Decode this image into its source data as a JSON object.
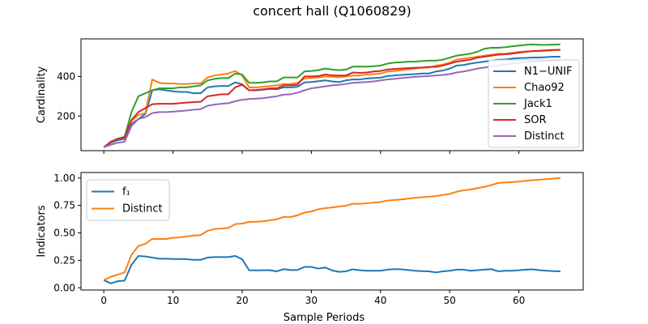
{
  "figure": {
    "title": "concert hall (Q1060829)"
  },
  "colors": {
    "blue": "#1f77b4",
    "orange": "#ff7f0e",
    "green": "#2ca02c",
    "red": "#d62728",
    "purple": "#9467bd"
  },
  "chart_data": [
    {
      "type": "line",
      "title": "",
      "xlabel": "",
      "ylabel": "Cardinality",
      "xlim": [
        -3.3,
        69.3
      ],
      "ylim": [
        25,
        590
      ],
      "xticks": [
        0,
        10,
        20,
        30,
        40,
        50,
        60
      ],
      "show_xtick_labels": false,
      "yticks": [
        200,
        400
      ],
      "legend": "right",
      "x": [
        0,
        1,
        2,
        3,
        4,
        5,
        6,
        7,
        8,
        9,
        10,
        11,
        12,
        13,
        14,
        15,
        16,
        17,
        18,
        19,
        20,
        21,
        22,
        23,
        24,
        25,
        26,
        27,
        28,
        29,
        30,
        31,
        32,
        33,
        34,
        35,
        36,
        37,
        38,
        39,
        40,
        41,
        42,
        43,
        44,
        45,
        46,
        47,
        48,
        49,
        50,
        51,
        52,
        53,
        54,
        55,
        56,
        57,
        58,
        59,
        60,
        61,
        62,
        63,
        64,
        65,
        66
      ],
      "series": [
        {
          "name": "N1−UNIF",
          "color": "#1f77b4",
          "values": [
            42,
            65,
            78,
            85,
            160,
            185,
            210,
            330,
            335,
            330,
            325,
            322,
            322,
            315,
            315,
            345,
            350,
            352,
            352,
            370,
            360,
            330,
            330,
            333,
            337,
            335,
            345,
            345,
            348,
            370,
            372,
            376,
            380,
            375,
            372,
            380,
            385,
            385,
            390,
            392,
            394,
            402,
            405,
            408,
            410,
            412,
            415,
            415,
            425,
            430,
            440,
            455,
            458,
            465,
            470,
            475,
            480,
            485,
            485,
            490,
            493,
            494,
            496,
            496,
            498,
            500,
            500
          ]
        },
        {
          "name": "Chao92",
          "color": "#ff7f0e",
          "values": [
            42,
            70,
            85,
            95,
            175,
            205,
            215,
            385,
            368,
            365,
            365,
            362,
            362,
            365,
            365,
            395,
            405,
            410,
            415,
            428,
            405,
            345,
            345,
            348,
            352,
            355,
            362,
            362,
            368,
            390,
            392,
            395,
            400,
            398,
            396,
            400,
            405,
            405,
            410,
            412,
            415,
            425,
            428,
            432,
            436,
            440,
            444,
            445,
            455,
            460,
            470,
            485,
            490,
            495,
            500,
            505,
            510,
            515,
            515,
            520,
            524,
            526,
            528,
            528,
            530,
            532,
            534
          ]
        },
        {
          "name": "Jack1",
          "color": "#2ca02c",
          "values": [
            42,
            70,
            85,
            95,
            220,
            300,
            315,
            330,
            340,
            340,
            340,
            345,
            345,
            350,
            355,
            380,
            388,
            392,
            392,
            415,
            410,
            368,
            368,
            370,
            375,
            375,
            395,
            395,
            395,
            425,
            428,
            432,
            440,
            435,
            432,
            435,
            450,
            450,
            450,
            452,
            455,
            465,
            470,
            472,
            475,
            475,
            478,
            480,
            480,
            485,
            495,
            505,
            510,
            515,
            525,
            540,
            545,
            545,
            548,
            552,
            556,
            560,
            562,
            560,
            560,
            561,
            562
          ]
        },
        {
          "name": "SOR",
          "color": "#d62728",
          "values": [
            42,
            70,
            85,
            92,
            180,
            220,
            240,
            260,
            262,
            262,
            262,
            265,
            268,
            270,
            272,
            300,
            305,
            310,
            310,
            345,
            358,
            330,
            332,
            335,
            340,
            340,
            355,
            355,
            358,
            400,
            400,
            402,
            410,
            406,
            405,
            405,
            420,
            418,
            420,
            425,
            428,
            435,
            438,
            440,
            442,
            444,
            445,
            448,
            448,
            455,
            465,
            475,
            480,
            485,
            495,
            500,
            505,
            510,
            512,
            515,
            520,
            525,
            528,
            530,
            532,
            534,
            535
          ]
        },
        {
          "name": "Distinct",
          "color": "#9467bd",
          "values": [
            42,
            55,
            65,
            70,
            150,
            185,
            195,
            215,
            220,
            220,
            222,
            225,
            228,
            232,
            235,
            252,
            258,
            262,
            265,
            275,
            282,
            286,
            288,
            290,
            295,
            300,
            308,
            310,
            318,
            330,
            340,
            345,
            350,
            355,
            358,
            362,
            368,
            370,
            372,
            375,
            380,
            385,
            388,
            392,
            395,
            398,
            400,
            402,
            405,
            408,
            412,
            420,
            425,
            432,
            440,
            445,
            450,
            455,
            460,
            465,
            470,
            472,
            474,
            476,
            478,
            480,
            482
          ]
        }
      ]
    },
    {
      "type": "line",
      "title": "",
      "xlabel": "Sample Periods",
      "ylabel": "Indicators",
      "xlim": [
        -3.3,
        69.3
      ],
      "ylim": [
        -0.02,
        1.05
      ],
      "xticks": [
        0,
        10,
        20,
        30,
        40,
        50,
        60
      ],
      "yticks": [
        0.0,
        0.25,
        0.5,
        0.75,
        1.0
      ],
      "ytick_labels": [
        "0.00",
        "0.25",
        "0.50",
        "0.75",
        "1.00"
      ],
      "legend": "top-left",
      "x": [
        0,
        1,
        2,
        3,
        4,
        5,
        6,
        7,
        8,
        9,
        10,
        11,
        12,
        13,
        14,
        15,
        16,
        17,
        18,
        19,
        20,
        21,
        22,
        23,
        24,
        25,
        26,
        27,
        28,
        29,
        30,
        31,
        32,
        33,
        34,
        35,
        36,
        37,
        38,
        39,
        40,
        41,
        42,
        43,
        44,
        45,
        46,
        47,
        48,
        49,
        50,
        51,
        52,
        53,
        54,
        55,
        56,
        57,
        58,
        59,
        60,
        61,
        62,
        63,
        64,
        65,
        66
      ],
      "series": [
        {
          "name": "f₁",
          "color": "#1f77b4",
          "values": [
            0.07,
            0.04,
            0.06,
            0.065,
            0.21,
            0.29,
            0.285,
            0.275,
            0.265,
            0.265,
            0.262,
            0.262,
            0.26,
            0.255,
            0.255,
            0.275,
            0.28,
            0.28,
            0.28,
            0.29,
            0.26,
            0.16,
            0.158,
            0.16,
            0.16,
            0.15,
            0.17,
            0.162,
            0.162,
            0.19,
            0.19,
            0.175,
            0.185,
            0.158,
            0.145,
            0.15,
            0.168,
            0.16,
            0.155,
            0.155,
            0.155,
            0.165,
            0.17,
            0.168,
            0.162,
            0.155,
            0.152,
            0.15,
            0.14,
            0.15,
            0.155,
            0.165,
            0.165,
            0.155,
            0.16,
            0.165,
            0.17,
            0.15,
            0.155,
            0.155,
            0.16,
            0.165,
            0.168,
            0.16,
            0.155,
            0.152,
            0.15
          ]
        },
        {
          "name": "Distinct",
          "color": "#ff7f0e",
          "values": [
            0.07,
            0.1,
            0.12,
            0.14,
            0.3,
            0.38,
            0.4,
            0.445,
            0.445,
            0.445,
            0.455,
            0.46,
            0.468,
            0.475,
            0.48,
            0.52,
            0.535,
            0.54,
            0.545,
            0.58,
            0.585,
            0.6,
            0.602,
            0.605,
            0.615,
            0.625,
            0.645,
            0.645,
            0.66,
            0.685,
            0.695,
            0.715,
            0.725,
            0.732,
            0.74,
            0.748,
            0.765,
            0.765,
            0.77,
            0.775,
            0.782,
            0.795,
            0.8,
            0.805,
            0.812,
            0.82,
            0.825,
            0.83,
            0.835,
            0.845,
            0.855,
            0.875,
            0.888,
            0.895,
            0.908,
            0.92,
            0.935,
            0.955,
            0.96,
            0.962,
            0.968,
            0.975,
            0.98,
            0.985,
            0.99,
            0.995,
            1.0
          ]
        }
      ]
    }
  ]
}
